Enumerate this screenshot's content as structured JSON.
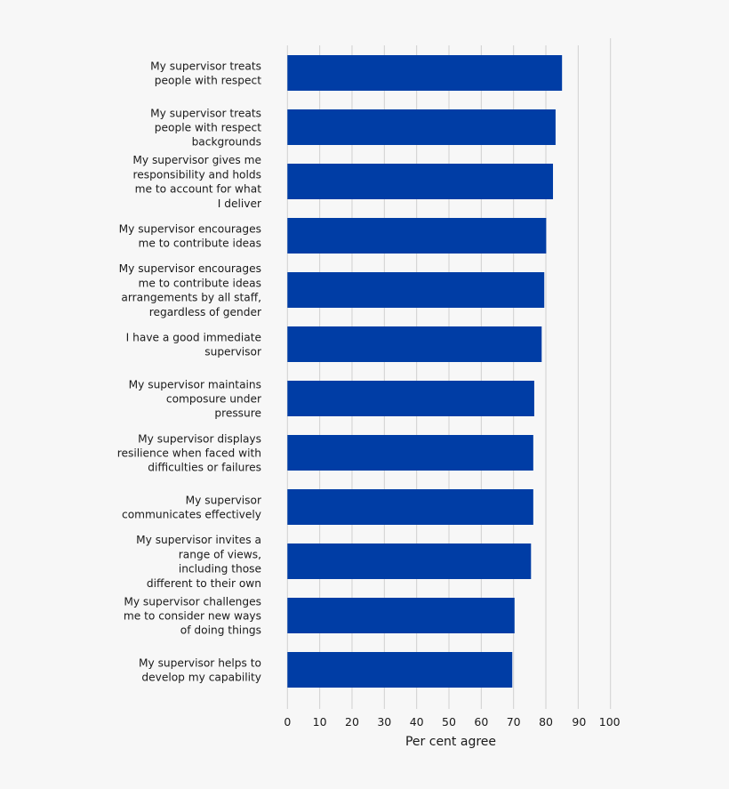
{
  "chart_data": {
    "type": "bar",
    "orientation": "horizontal",
    "title": "",
    "xlabel": "Per cent agree",
    "ylabel": "",
    "xlim": [
      0,
      100
    ],
    "xticks": [
      0,
      10,
      20,
      30,
      40,
      50,
      60,
      70,
      80,
      90,
      100
    ],
    "grid": true,
    "bar_color": "#003DA5",
    "categories": [
      [
        "My supervisor treats",
        "people with respect"
      ],
      [
        "My supervisor treats",
        "people with respect",
        "backgrounds"
      ],
      [
        "My supervisor gives me",
        "responsibility and holds",
        "me to account for what",
        "I deliver"
      ],
      [
        "My supervisor encourages",
        "me to contribute ideas"
      ],
      [
        "My supervisor encourages",
        "me to contribute ideas",
        "arrangements by all staff,",
        "regardless of gender"
      ],
      [
        "I have a good immediate",
        "supervisor"
      ],
      [
        "My supervisor maintains",
        "composure under",
        "pressure"
      ],
      [
        "My supervisor displays",
        "resilience when faced with",
        "difficulties or failures"
      ],
      [
        "My supervisor",
        "communicates effectively"
      ],
      [
        "My supervisor invites a",
        "range of views,",
        "including those",
        "different to their own"
      ],
      [
        "My supervisor challenges",
        "me to consider new ways",
        "of doing things"
      ],
      [
        "My supervisor helps to",
        "develop my capability"
      ]
    ],
    "values": [
      85,
      83,
      82.2,
      80.1,
      79.5,
      78.7,
      76.4,
      76.1,
      76.1,
      75.4,
      70.3,
      69.6
    ]
  }
}
